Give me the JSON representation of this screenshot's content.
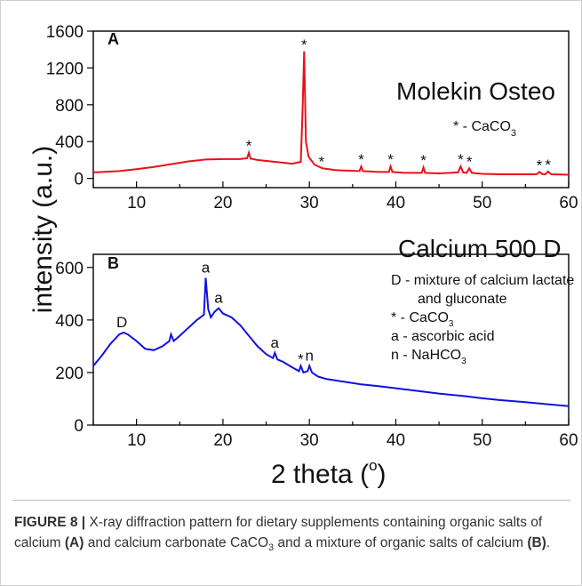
{
  "chart_data": [
    {
      "type": "line",
      "panel": "A",
      "title": "Molekin Osteo",
      "xlabel": "2 theta (°)",
      "ylabel": "intensity (a.u.)",
      "xlim": [
        5,
        60
      ],
      "ylim": [
        -100,
        1600
      ],
      "xticks": [
        "10",
        "20",
        "30",
        "40",
        "50",
        "60"
      ],
      "yticks": [
        "0",
        "400",
        "800",
        "1200",
        "1600"
      ],
      "color": "#e8101a",
      "series": [
        {
          "x": [
            5,
            8,
            10,
            12,
            14,
            16,
            18,
            20,
            22,
            22.8,
            23.0,
            23.2,
            24,
            26,
            27,
            28,
            29.0,
            29.2,
            29.4,
            29.6,
            29.9,
            30.1,
            30.6,
            31.5,
            33,
            35.8,
            36.0,
            36.2,
            38,
            39.2,
            39.4,
            39.6,
            41,
            43.0,
            43.2,
            43.4,
            45,
            47.2,
            47.5,
            47.8,
            48.2,
            48.5,
            48.8,
            50,
            52,
            54,
            56.3,
            56.6,
            57.0,
            57.3,
            57.6,
            58,
            60
          ],
          "y": [
            65,
            80,
            100,
            125,
            155,
            185,
            205,
            210,
            210,
            220,
            280,
            215,
            200,
            180,
            170,
            160,
            180,
            700,
            1380,
            400,
            240,
            210,
            150,
            110,
            90,
            80,
            130,
            80,
            70,
            70,
            130,
            70,
            60,
            60,
            120,
            60,
            55,
            65,
            130,
            65,
            60,
            110,
            60,
            50,
            45,
            45,
            45,
            70,
            45,
            45,
            75,
            45,
            40
          ]
        }
      ],
      "annotations": [
        {
          "text": "*",
          "x": 23.0,
          "y": 280
        },
        {
          "text": "*",
          "x": 29.4,
          "y": 1380
        },
        {
          "text": "*",
          "x": 31.4,
          "y": 110
        },
        {
          "text": "*",
          "x": 36.0,
          "y": 130
        },
        {
          "text": "*",
          "x": 39.4,
          "y": 130
        },
        {
          "text": "*",
          "x": 43.2,
          "y": 120
        },
        {
          "text": "*",
          "x": 47.5,
          "y": 130
        },
        {
          "text": "*",
          "x": 48.5,
          "y": 110
        },
        {
          "text": "*",
          "x": 56.6,
          "y": 70
        },
        {
          "text": "*",
          "x": 57.6,
          "y": 75
        }
      ],
      "legend": {
        "symbol": "* - CaCO",
        "sub": "3"
      }
    },
    {
      "type": "line",
      "panel": "B",
      "title": "Calcium 500 D",
      "xlabel": "2 theta (°)",
      "ylabel": "intensity (a.u.)",
      "xlim": [
        5,
        60
      ],
      "ylim": [
        0,
        650
      ],
      "xticks": [
        "10",
        "20",
        "30",
        "40",
        "50",
        "60"
      ],
      "yticks": [
        "0",
        "200",
        "400",
        "600"
      ],
      "color": "#1010e0",
      "series": [
        {
          "x": [
            5,
            6,
            7,
            8,
            8.5,
            9,
            10,
            11,
            12,
            13,
            13.8,
            14.0,
            14.3,
            15,
            16,
            17,
            17.8,
            18.0,
            18.3,
            18.6,
            19.0,
            19.5,
            20,
            21,
            22,
            23,
            24,
            25,
            25.8,
            26.0,
            26.3,
            27,
            28,
            28.8,
            29.0,
            29.3,
            29.8,
            30.0,
            30.3,
            31,
            32,
            34,
            36,
            38,
            40,
            42,
            45,
            48,
            50,
            52,
            55,
            58,
            60
          ],
          "y": [
            225,
            265,
            310,
            345,
            352,
            345,
            320,
            290,
            285,
            300,
            320,
            345,
            320,
            340,
            370,
            400,
            420,
            560,
            440,
            410,
            430,
            445,
            425,
            410,
            380,
            340,
            300,
            270,
            255,
            275,
            250,
            240,
            220,
            205,
            225,
            200,
            205,
            225,
            200,
            185,
            175,
            165,
            155,
            148,
            140,
            132,
            120,
            110,
            102,
            95,
            87,
            78,
            72
          ]
        }
      ],
      "annotations": [
        {
          "text": "D",
          "x": 8.3,
          "y": 352
        },
        {
          "text": "a",
          "x": 18.0,
          "y": 560
        },
        {
          "text": "a",
          "x": 19.5,
          "y": 445
        },
        {
          "text": "a",
          "x": 26.0,
          "y": 275
        },
        {
          "text": "*",
          "x": 29.0,
          "y": 225
        },
        {
          "text": "n",
          "x": 30.0,
          "y": 225
        }
      ],
      "legend": [
        {
          "text": "D - mixture of calcium lactate"
        },
        {
          "text": "and gluconate"
        },
        {
          "text": "* - CaCO",
          "sub": "3"
        },
        {
          "text": "a - ascorbic acid"
        },
        {
          "text": "n - NaHCO",
          "sub": "3"
        }
      ]
    }
  ],
  "axis_titles": {
    "y": "intensity (a.u.)",
    "x_main": "2 theta (",
    "x_deg": "o",
    "x_end": ")"
  },
  "caption": {
    "label": "FIGURE 8 |",
    "part1": " X-ray diffraction pattern for dietary supplements containing organic salts of calcium ",
    "bold_a": "(A)",
    "part2": " and calcium carbonate CaCO",
    "sub": "3",
    "part3": " and a mixture of organic salts of calcium ",
    "bold_b": "(B)",
    "part4": "."
  }
}
